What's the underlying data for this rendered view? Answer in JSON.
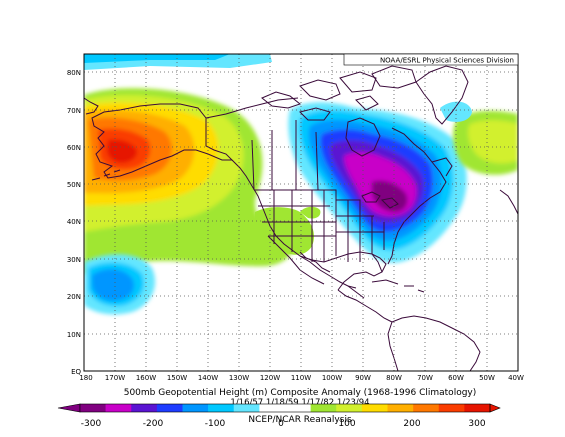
{
  "map": {
    "credit": "NOAA/ESRL Physical Sciences Division",
    "title_line1": "500mb Geopotential Height (m) Composite Anomaly (1968-1996 Climatology)",
    "title_line2": "1/16/57 1/18/59 1/17/82 1/23/94",
    "source": "NCEP/NCAR Reanalysis",
    "lat_labels": [
      "80N",
      "70N",
      "60N",
      "50N",
      "40N",
      "30N",
      "20N",
      "10N",
      "EQ"
    ],
    "lon_labels": [
      "180",
      "170W",
      "160W",
      "150W",
      "140W",
      "130W",
      "120W",
      "110W",
      "100W",
      "90W",
      "80W",
      "70W",
      "60W",
      "50W",
      "40W"
    ]
  },
  "colorbar": {
    "tick_labels": [
      "-300",
      "-200",
      "-100",
      "0",
      "100",
      "200",
      "300"
    ],
    "colors": [
      "#800080",
      "#c800c8",
      "#5a14d2",
      "#1e3cff",
      "#0096ff",
      "#00c8ff",
      "#64e6ff",
      "#ffffff",
      "#ffffff",
      "#a0e632",
      "#d2f02d",
      "#ffdc00",
      "#ffaf00",
      "#ff7800",
      "#fa3c00",
      "#e61400"
    ]
  }
}
